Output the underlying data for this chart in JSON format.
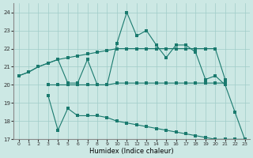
{
  "xlabel": "Humidex (Indice chaleur)",
  "line_color": "#1a7a6e",
  "bg_color": "#cce8e4",
  "grid_color": "#a0ccc8",
  "ylim": [
    17,
    24.5
  ],
  "xlim": [
    -0.5,
    23.5
  ],
  "lineA_x": [
    0,
    1,
    2,
    3,
    4,
    5,
    6,
    7,
    8,
    9,
    10,
    11,
    12,
    13,
    14,
    15,
    16,
    17,
    18,
    19,
    20,
    21
  ],
  "lineA_y": [
    20.5,
    20.7,
    21.0,
    21.2,
    21.4,
    21.5,
    21.6,
    21.7,
    21.8,
    21.9,
    22.0,
    22.0,
    22.0,
    22.0,
    22.0,
    22.0,
    22.0,
    22.0,
    22.0,
    22.0,
    22.0,
    20.3
  ],
  "lineB_x": [
    0,
    1,
    2,
    3,
    4,
    5,
    6,
    7,
    8,
    9,
    10,
    11,
    12,
    13,
    14,
    15,
    16,
    17,
    18,
    19,
    20,
    21,
    22,
    23
  ],
  "lineB_y": [
    20.5,
    20.7,
    21.0,
    21.2,
    21.4,
    20.1,
    20.1,
    21.4,
    20.0,
    20.0,
    22.3,
    24.0,
    22.7,
    23.0,
    22.2,
    21.5,
    22.2,
    22.2,
    21.8,
    20.3,
    20.5,
    20.0,
    18.5,
    17.0
  ],
  "lineC_x": [
    3,
    4,
    5,
    6,
    7,
    8,
    9,
    10,
    11,
    12,
    13,
    14,
    15,
    16,
    17,
    18,
    19,
    20,
    21
  ],
  "lineC_y": [
    20.0,
    20.0,
    20.0,
    20.0,
    20.0,
    20.0,
    20.0,
    20.1,
    20.1,
    20.1,
    20.1,
    20.1,
    20.1,
    20.1,
    20.1,
    20.1,
    20.1,
    20.1,
    20.1
  ],
  "lineD_x": [
    3,
    4,
    5,
    6,
    7,
    8,
    9,
    10,
    11,
    12,
    13,
    14,
    15,
    16,
    17,
    18,
    19,
    20,
    21,
    22,
    23
  ],
  "lineD_y": [
    19.4,
    17.5,
    18.7,
    18.3,
    18.3,
    18.3,
    18.2,
    18.0,
    17.9,
    17.8,
    17.7,
    17.6,
    17.5,
    17.4,
    17.3,
    17.2,
    17.1,
    17.0,
    17.0,
    17.0,
    17.0
  ]
}
